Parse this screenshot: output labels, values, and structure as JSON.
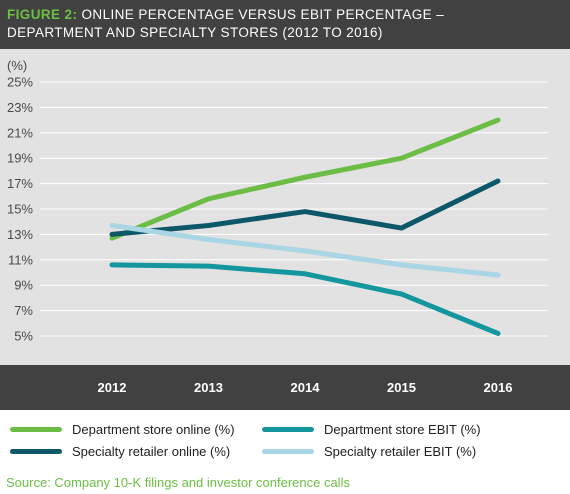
{
  "header": {
    "figure_label": "FIGURE 2:",
    "title_line1": "ONLINE PERCENTAGE VERSUS EBIT PERCENTAGE –",
    "title_line2": "DEPARTMENT AND SPECIALTY STORES (2012 TO 2016)"
  },
  "source": "Source: Company 10-K filings and investor conference calls",
  "colors": {
    "header_bg": "#414141",
    "plot_bg": "#e2e2e2",
    "accent_green": "#6dbf43"
  },
  "chart_data": {
    "type": "line",
    "title": "ONLINE PERCENTAGE VERSUS EBIT PERCENTAGE – DEPARTMENT AND SPECIALTY STORES (2012 TO 2016)",
    "ylabel": "(%)",
    "xlabel": "",
    "x": [
      "2012",
      "2013",
      "2014",
      "2015",
      "2016"
    ],
    "ylim": [
      5,
      25
    ],
    "y_ticks": [
      "5%",
      "7%",
      "9%",
      "11%",
      "13%",
      "15%",
      "17%",
      "19%",
      "21%",
      "23%",
      "25%"
    ],
    "grid": "horizontal",
    "legend_position": "bottom",
    "series": [
      {
        "name": "Department store online (%)",
        "color": "#6cbd45",
        "values": [
          12.7,
          15.8,
          17.5,
          19.0,
          22.0
        ]
      },
      {
        "name": "Department store EBIT (%)",
        "color": "#14969f",
        "values": [
          10.6,
          10.5,
          9.9,
          8.3,
          5.2
        ]
      },
      {
        "name": "Specialty retailer online (%)",
        "color": "#0c5869",
        "values": [
          13.0,
          13.7,
          14.8,
          13.5,
          17.2
        ]
      },
      {
        "name": "Specialty retailer EBIT (%)",
        "color": "#a9d5e4",
        "values": [
          13.7,
          12.6,
          11.7,
          10.6,
          9.8
        ]
      }
    ]
  }
}
